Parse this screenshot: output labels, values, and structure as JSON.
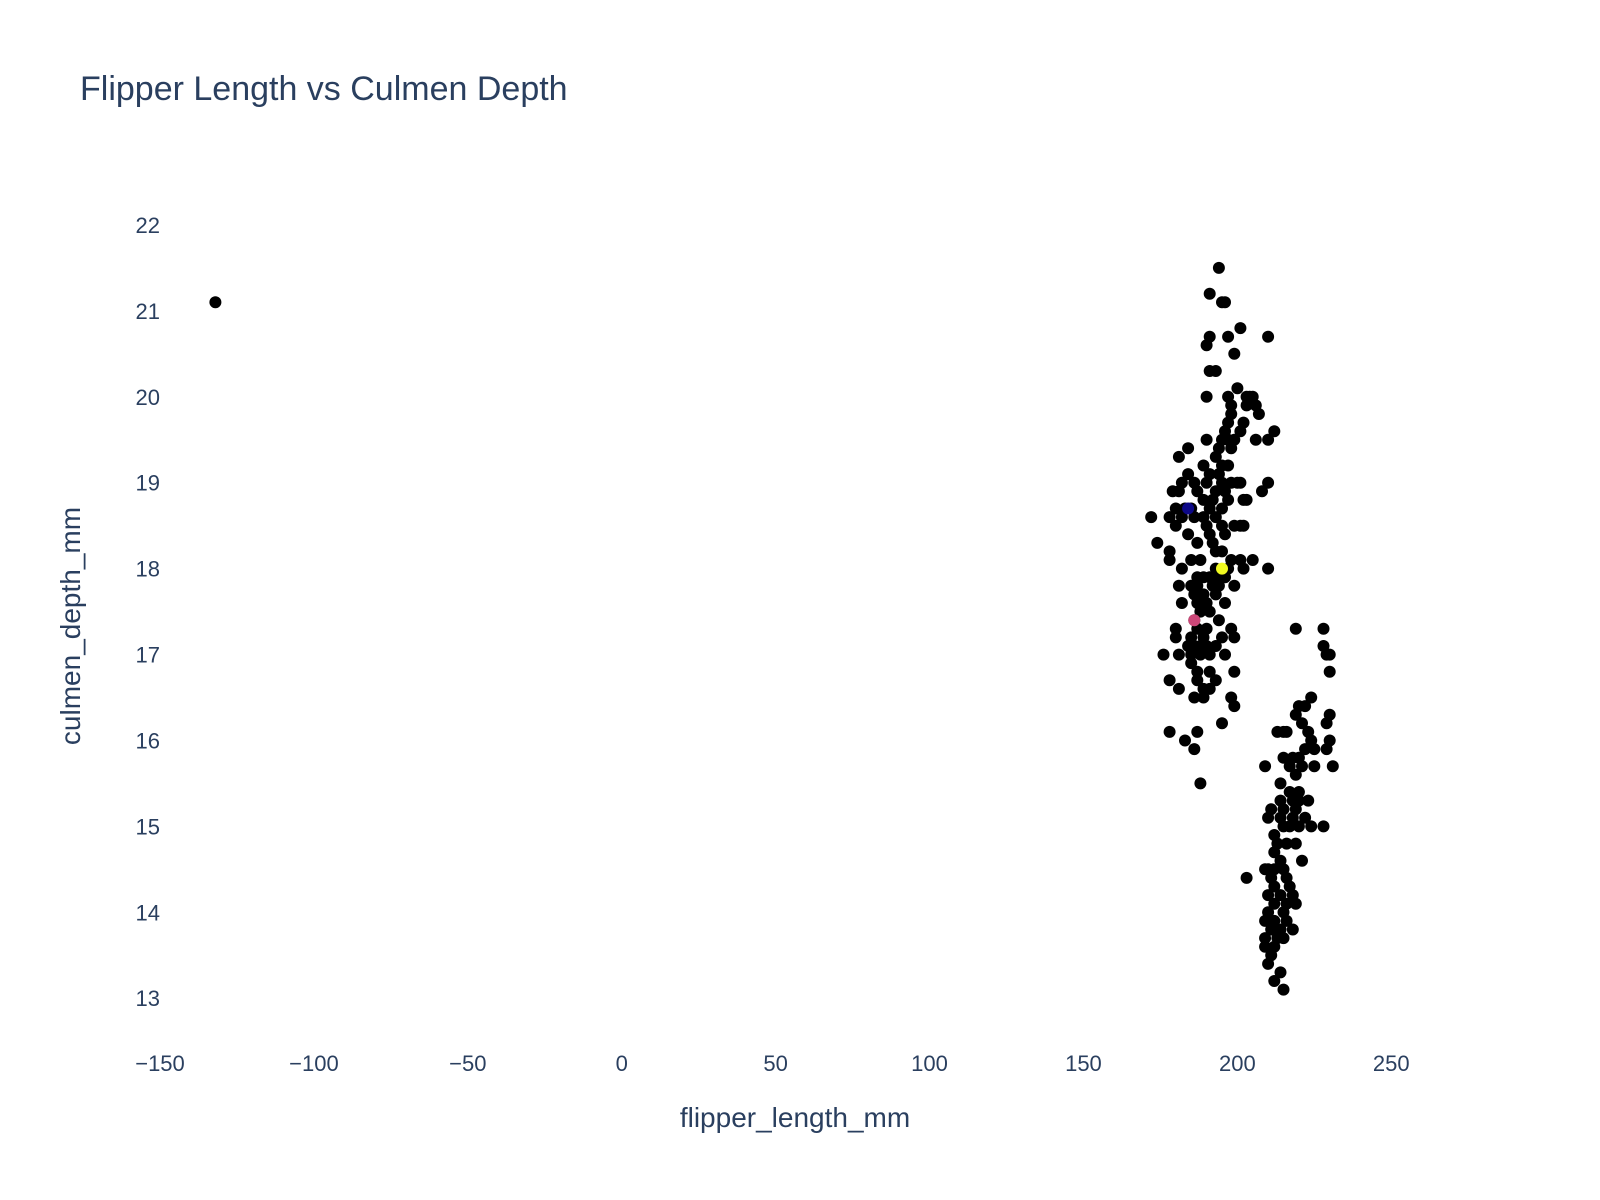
{
  "chart_data": {
    "type": "scatter",
    "title": "Flipper Length vs Culmen Depth",
    "xlabel": "flipper_length_mm",
    "ylabel": "culmen_depth_mm",
    "xlim": [
      -150,
      285
    ],
    "ylim": [
      12.7,
      22.5
    ],
    "x_ticks": [
      -150,
      -100,
      -50,
      0,
      50,
      100,
      150,
      200,
      250
    ],
    "x_tick_labels": [
      "−150",
      "−100",
      "−50",
      "0",
      "50",
      "100",
      "150",
      "200",
      "250"
    ],
    "y_ticks": [
      13,
      14,
      15,
      16,
      17,
      18,
      19,
      20,
      21,
      22
    ],
    "y_tick_labels": [
      "13",
      "14",
      "15",
      "16",
      "17",
      "18",
      "19",
      "20",
      "21",
      "22"
    ],
    "grid": false,
    "legend": "none",
    "marker_color": "#000000",
    "series": [
      {
        "points": [
          [
            -132,
            21.1
          ],
          [
            194,
            21.5
          ],
          [
            191,
            21.2
          ],
          [
            195,
            21.1
          ],
          [
            196,
            21.1
          ],
          [
            201,
            20.8
          ],
          [
            191,
            20.7
          ],
          [
            197,
            20.7
          ],
          [
            210,
            20.7
          ],
          [
            190,
            20.6
          ],
          [
            199,
            20.5
          ],
          [
            191,
            20.3
          ],
          [
            193,
            20.3
          ],
          [
            190,
            20.0
          ],
          [
            197,
            20.0
          ],
          [
            200,
            20.1
          ],
          [
            203,
            20.0
          ],
          [
            204,
            20.0
          ],
          [
            205,
            20.0
          ],
          [
            198,
            19.9
          ],
          [
            203,
            19.9
          ],
          [
            206,
            19.9
          ],
          [
            198,
            19.8
          ],
          [
            197,
            19.7
          ],
          [
            207,
            19.8
          ],
          [
            202,
            19.7
          ],
          [
            196,
            19.6
          ],
          [
            201,
            19.6
          ],
          [
            212,
            19.6
          ],
          [
            195,
            19.5
          ],
          [
            197,
            19.5
          ],
          [
            199,
            19.5
          ],
          [
            190,
            19.5
          ],
          [
            206,
            19.5
          ],
          [
            210,
            19.5
          ],
          [
            194,
            19.4
          ],
          [
            198,
            19.4
          ],
          [
            184,
            19.4
          ],
          [
            181,
            19.3
          ],
          [
            193,
            19.3
          ],
          [
            195,
            19.2
          ],
          [
            189,
            19.2
          ],
          [
            197,
            19.2
          ],
          [
            191,
            19.1
          ],
          [
            194,
            19.1
          ],
          [
            184,
            19.1
          ],
          [
            186,
            19.0
          ],
          [
            190,
            19.0
          ],
          [
            195,
            19.0
          ],
          [
            198,
            19.0
          ],
          [
            200,
            19.0
          ],
          [
            201,
            19.0
          ],
          [
            210,
            19.0
          ],
          [
            182,
            19.0
          ],
          [
            193,
            18.9
          ],
          [
            196,
            18.9
          ],
          [
            208,
            18.9
          ],
          [
            179,
            18.9
          ],
          [
            181,
            18.9
          ],
          [
            187,
            18.9
          ],
          [
            189,
            18.8
          ],
          [
            192,
            18.8
          ],
          [
            197,
            18.8
          ],
          [
            202,
            18.8
          ],
          [
            203,
            18.8
          ],
          [
            185,
            18.7
          ],
          [
            183,
            18.7
          ],
          [
            191,
            18.7
          ],
          [
            195,
            18.7
          ],
          [
            180,
            18.7
          ],
          [
            178,
            18.6
          ],
          [
            182,
            18.6
          ],
          [
            186,
            18.6
          ],
          [
            189,
            18.6
          ],
          [
            193,
            18.6
          ],
          [
            172,
            18.6
          ],
          [
            190,
            18.5
          ],
          [
            195,
            18.5
          ],
          [
            199,
            18.5
          ],
          [
            201,
            18.5
          ],
          [
            202,
            18.5
          ],
          [
            180,
            18.5
          ],
          [
            184,
            18.4
          ],
          [
            191,
            18.4
          ],
          [
            196,
            18.4
          ],
          [
            174,
            18.3
          ],
          [
            187,
            18.3
          ],
          [
            192,
            18.3
          ],
          [
            195,
            18.2
          ],
          [
            193,
            18.2
          ],
          [
            178,
            18.2
          ],
          [
            178,
            18.1
          ],
          [
            185,
            18.1
          ],
          [
            188,
            18.1
          ],
          [
            198,
            18.1
          ],
          [
            201,
            18.1
          ],
          [
            205,
            18.1
          ],
          [
            210,
            18.0
          ],
          [
            182,
            18.0
          ],
          [
            193,
            18.0
          ],
          [
            197,
            18.0
          ],
          [
            202,
            18.0
          ],
          [
            194,
            17.9
          ],
          [
            187,
            17.9
          ],
          [
            189,
            17.9
          ],
          [
            191,
            17.9
          ],
          [
            196,
            17.9
          ],
          [
            181,
            17.8
          ],
          [
            185,
            17.8
          ],
          [
            187,
            17.8
          ],
          [
            192,
            17.8
          ],
          [
            194,
            17.8
          ],
          [
            199,
            17.8
          ],
          [
            186,
            17.7
          ],
          [
            189,
            17.7
          ],
          [
            193,
            17.7
          ],
          [
            187,
            17.6
          ],
          [
            190,
            17.6
          ],
          [
            182,
            17.6
          ],
          [
            196,
            17.6
          ],
          [
            188,
            17.5
          ],
          [
            191,
            17.5
          ],
          [
            186,
            17.4
          ],
          [
            194,
            17.4
          ],
          [
            180,
            17.3
          ],
          [
            187,
            17.3
          ],
          [
            190,
            17.3
          ],
          [
            198,
            17.3
          ],
          [
            180,
            17.2
          ],
          [
            185,
            17.2
          ],
          [
            189,
            17.2
          ],
          [
            195,
            17.2
          ],
          [
            199,
            17.2
          ],
          [
            184,
            17.1
          ],
          [
            186,
            17.1
          ],
          [
            188,
            17.1
          ],
          [
            190,
            17.1
          ],
          [
            193,
            17.1
          ],
          [
            176,
            17.0
          ],
          [
            181,
            17.0
          ],
          [
            185,
            17.0
          ],
          [
            188,
            17.0
          ],
          [
            191,
            17.0
          ],
          [
            196,
            17.0
          ],
          [
            185,
            16.9
          ],
          [
            187,
            16.8
          ],
          [
            191,
            16.8
          ],
          [
            199,
            16.8
          ],
          [
            178,
            16.7
          ],
          [
            187,
            16.7
          ],
          [
            193,
            16.7
          ],
          [
            181,
            16.6
          ],
          [
            189,
            16.6
          ],
          [
            191,
            16.6
          ],
          [
            186,
            16.5
          ],
          [
            189,
            16.5
          ],
          [
            198,
            16.5
          ],
          [
            199,
            16.4
          ],
          [
            195,
            16.2
          ],
          [
            178,
            16.1
          ],
          [
            187,
            16.1
          ],
          [
            183,
            16.0
          ],
          [
            186,
            15.9
          ],
          [
            188,
            15.5
          ],
          [
            219,
            17.3
          ],
          [
            228,
            17.3
          ],
          [
            228,
            17.1
          ],
          [
            229,
            17.0
          ],
          [
            230,
            17.0
          ],
          [
            230,
            16.8
          ],
          [
            224,
            16.5
          ],
          [
            220,
            16.4
          ],
          [
            222,
            16.4
          ],
          [
            230,
            16.3
          ],
          [
            219,
            16.3
          ],
          [
            221,
            16.2
          ],
          [
            229,
            16.2
          ],
          [
            213,
            16.1
          ],
          [
            215,
            16.1
          ],
          [
            216,
            16.1
          ],
          [
            223,
            16.1
          ],
          [
            224,
            16.0
          ],
          [
            230,
            16.0
          ],
          [
            222,
            15.9
          ],
          [
            225,
            15.9
          ],
          [
            229,
            15.9
          ],
          [
            215,
            15.8
          ],
          [
            218,
            15.8
          ],
          [
            220,
            15.8
          ],
          [
            221,
            15.7
          ],
          [
            209,
            15.7
          ],
          [
            217,
            15.7
          ],
          [
            225,
            15.7
          ],
          [
            231,
            15.7
          ],
          [
            219,
            15.6
          ],
          [
            214,
            15.5
          ],
          [
            217,
            15.4
          ],
          [
            220,
            15.4
          ],
          [
            214,
            15.3
          ],
          [
            218,
            15.3
          ],
          [
            220,
            15.3
          ],
          [
            223,
            15.3
          ],
          [
            211,
            15.2
          ],
          [
            215,
            15.2
          ],
          [
            219,
            15.2
          ],
          [
            214,
            15.1
          ],
          [
            218,
            15.1
          ],
          [
            210,
            15.1
          ],
          [
            222,
            15.1
          ],
          [
            215,
            15.0
          ],
          [
            217,
            15.0
          ],
          [
            220,
            15.0
          ],
          [
            224,
            15.0
          ],
          [
            228,
            15.0
          ],
          [
            212,
            14.9
          ],
          [
            216,
            14.8
          ],
          [
            219,
            14.8
          ],
          [
            213,
            14.8
          ],
          [
            212,
            14.7
          ],
          [
            214,
            14.6
          ],
          [
            221,
            14.6
          ],
          [
            210,
            14.5
          ],
          [
            212,
            14.5
          ],
          [
            215,
            14.5
          ],
          [
            209,
            14.5
          ],
          [
            203,
            14.4
          ],
          [
            211,
            14.4
          ],
          [
            216,
            14.4
          ],
          [
            217,
            14.3
          ],
          [
            212,
            14.3
          ],
          [
            214,
            14.2
          ],
          [
            218,
            14.2
          ],
          [
            210,
            14.2
          ],
          [
            216,
            14.1
          ],
          [
            219,
            14.1
          ],
          [
            212,
            14.1
          ],
          [
            215,
            14.0
          ],
          [
            210,
            14.0
          ],
          [
            212,
            13.9
          ],
          [
            216,
            13.9
          ],
          [
            209,
            13.9
          ],
          [
            214,
            13.8
          ],
          [
            218,
            13.8
          ],
          [
            211,
            13.8
          ],
          [
            213,
            13.7
          ],
          [
            215,
            13.7
          ],
          [
            209,
            13.7
          ],
          [
            212,
            13.6
          ],
          [
            209,
            13.6
          ],
          [
            211,
            13.5
          ],
          [
            210,
            13.4
          ],
          [
            214,
            13.3
          ],
          [
            212,
            13.2
          ],
          [
            215,
            13.1
          ]
        ],
        "highlights": [
          {
            "x": 195,
            "y": 18.0,
            "color": "#f0f921"
          },
          {
            "x": 186,
            "y": 17.4,
            "color": "#cc4778"
          },
          {
            "x": 184,
            "y": 18.7,
            "color": "#0d0887"
          }
        ]
      }
    ]
  }
}
